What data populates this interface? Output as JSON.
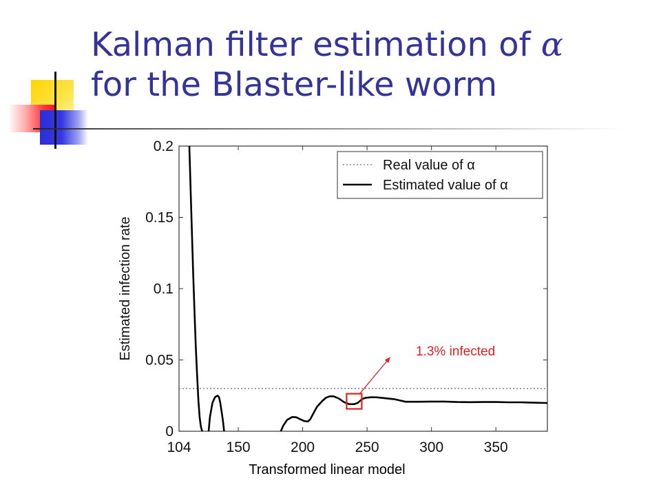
{
  "slide": {
    "title_line1_prefix": "Kalman filter estimation of ",
    "title_alpha": "α",
    "title_line2": "for the Blaster-like worm",
    "caption": "Transformed linear model"
  },
  "chart_data": {
    "type": "line",
    "title": "",
    "xlabel": "",
    "ylabel": "Estimated infection rate",
    "xlim": [
      104,
      390
    ],
    "ylim": [
      0,
      0.2
    ],
    "x_ticks": [
      104,
      150,
      200,
      250,
      300,
      350
    ],
    "y_ticks": [
      0,
      0.05,
      0.1,
      0.15,
      0.2
    ],
    "y_tick_labels": [
      "0",
      "0.05",
      "0.1",
      "0.15",
      "0.2"
    ],
    "grid": false,
    "legend_position": "top-right",
    "series": [
      {
        "name": "Real value of α",
        "style": "dotted",
        "color": "#888888",
        "x": [
          104,
          390
        ],
        "y": [
          0.03,
          0.03
        ]
      },
      {
        "name": "Estimated value of α",
        "style": "solid",
        "color": "#000000",
        "segments": [
          {
            "x": [
              112,
              113,
              114,
              115,
              116,
              117,
              118,
              119,
              120,
              121,
              122
            ],
            "y": [
              0.2,
              0.17,
              0.14,
              0.11,
              0.085,
              0.06,
              0.04,
              0.022,
              0.01,
              0.003,
              0
            ]
          },
          {
            "x": [
              127,
              128,
              130,
              132,
              134,
              135,
              136,
              138,
              139
            ],
            "y": [
              0,
              0.01,
              0.02,
              0.024,
              0.025,
              0.024,
              0.02,
              0.008,
              0
            ]
          },
          {
            "x": [
              183,
              185,
              188,
              192,
              195,
              198,
              201,
              204,
              206,
              208,
              211,
              215,
              218,
              221,
              224,
              228,
              232,
              236,
              240,
              243,
              246,
              249,
              253,
              257,
              261,
              266,
              271,
              276,
              280,
              290,
              300,
              310,
              320,
              330,
              340,
              350,
              360,
              370,
              380,
              390
            ],
            "y": [
              0,
              0.004,
              0.008,
              0.01,
              0.0098,
              0.0085,
              0.0072,
              0.0068,
              0.0085,
              0.012,
              0.017,
              0.021,
              0.0235,
              0.0245,
              0.0245,
              0.023,
              0.0205,
              0.019,
              0.019,
              0.02,
              0.0225,
              0.0235,
              0.0238,
              0.0238,
              0.0235,
              0.023,
              0.0225,
              0.0215,
              0.0207,
              0.0207,
              0.0208,
              0.0208,
              0.0205,
              0.0204,
              0.0205,
              0.0205,
              0.0203,
              0.0203,
              0.02,
              0.0198
            ]
          }
        ]
      }
    ],
    "annotation": {
      "text": "1.3% infected",
      "color": "#e02020",
      "box_at": {
        "x": 240,
        "y": 0.021
      },
      "arrow_to": {
        "x": 268,
        "y": 0.052
      }
    }
  }
}
